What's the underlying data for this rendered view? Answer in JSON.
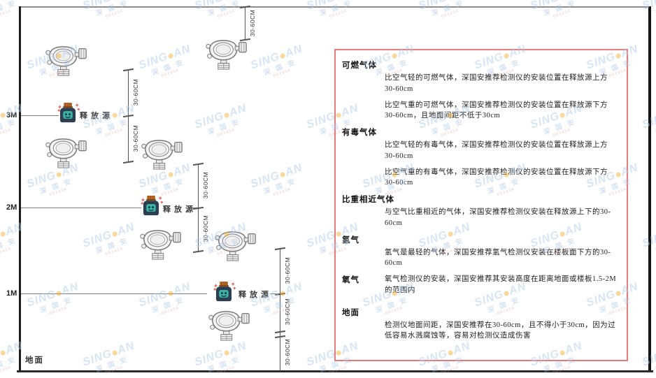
{
  "diagram": {
    "ground_label": "地面",
    "source_label": "释放源",
    "dim_label": "30-60CM",
    "height_markers": [
      {
        "label": "3M"
      },
      {
        "label": "2M"
      },
      {
        "label": "1M"
      }
    ]
  },
  "panel": {
    "border_color": "#e57a7a",
    "sections": [
      {
        "heading": "可燃气体",
        "paragraphs": [
          "比空气轻的可燃气体，深国安推荐检测仪的安装位置在释放源上方30-60cm",
          "比空气重的可燃气体，深国安推荐检测仪的安装位置在释放源下方30-60cm，且地面间距不低于30cm"
        ]
      },
      {
        "heading": "有毒气体",
        "paragraphs": [
          "比空气轻的有毒气体，深国安推荐检测仪的安装位置在释放源上方30-60cm",
          "比空气重的有毒气体，深国安推荐检测仪的安装位置在释放源下方30-60cm"
        ]
      },
      {
        "heading": "比重相近气体",
        "paragraphs": [
          "与空气比重相近的气体，深国安推荐检测仪安装在释放源上下的30-60cm"
        ]
      },
      {
        "heading": "氢气",
        "paragraphs": [
          "氢气是最轻的气体，深国安推荐氢气检测仪安装在楼板面下方的30-60cm"
        ]
      },
      {
        "heading": "氧气",
        "paragraphs": [
          "氧气检测仪的安装，深国安推荐其安装高度在距离地面或楼板1.5-2M的范围内"
        ]
      },
      {
        "heading": "地面",
        "paragraphs": [
          "检测仪地面间距，深国安推荐在30-60cm，且不得小于30cm，因为过低容易水溅腐蚀等，容易对检测仪造成伤害"
        ]
      }
    ]
  },
  "watermark": {
    "brand_left": "SING",
    "brand_right": "AN",
    "cn": "深 国 安",
    "sub": "081434"
  }
}
